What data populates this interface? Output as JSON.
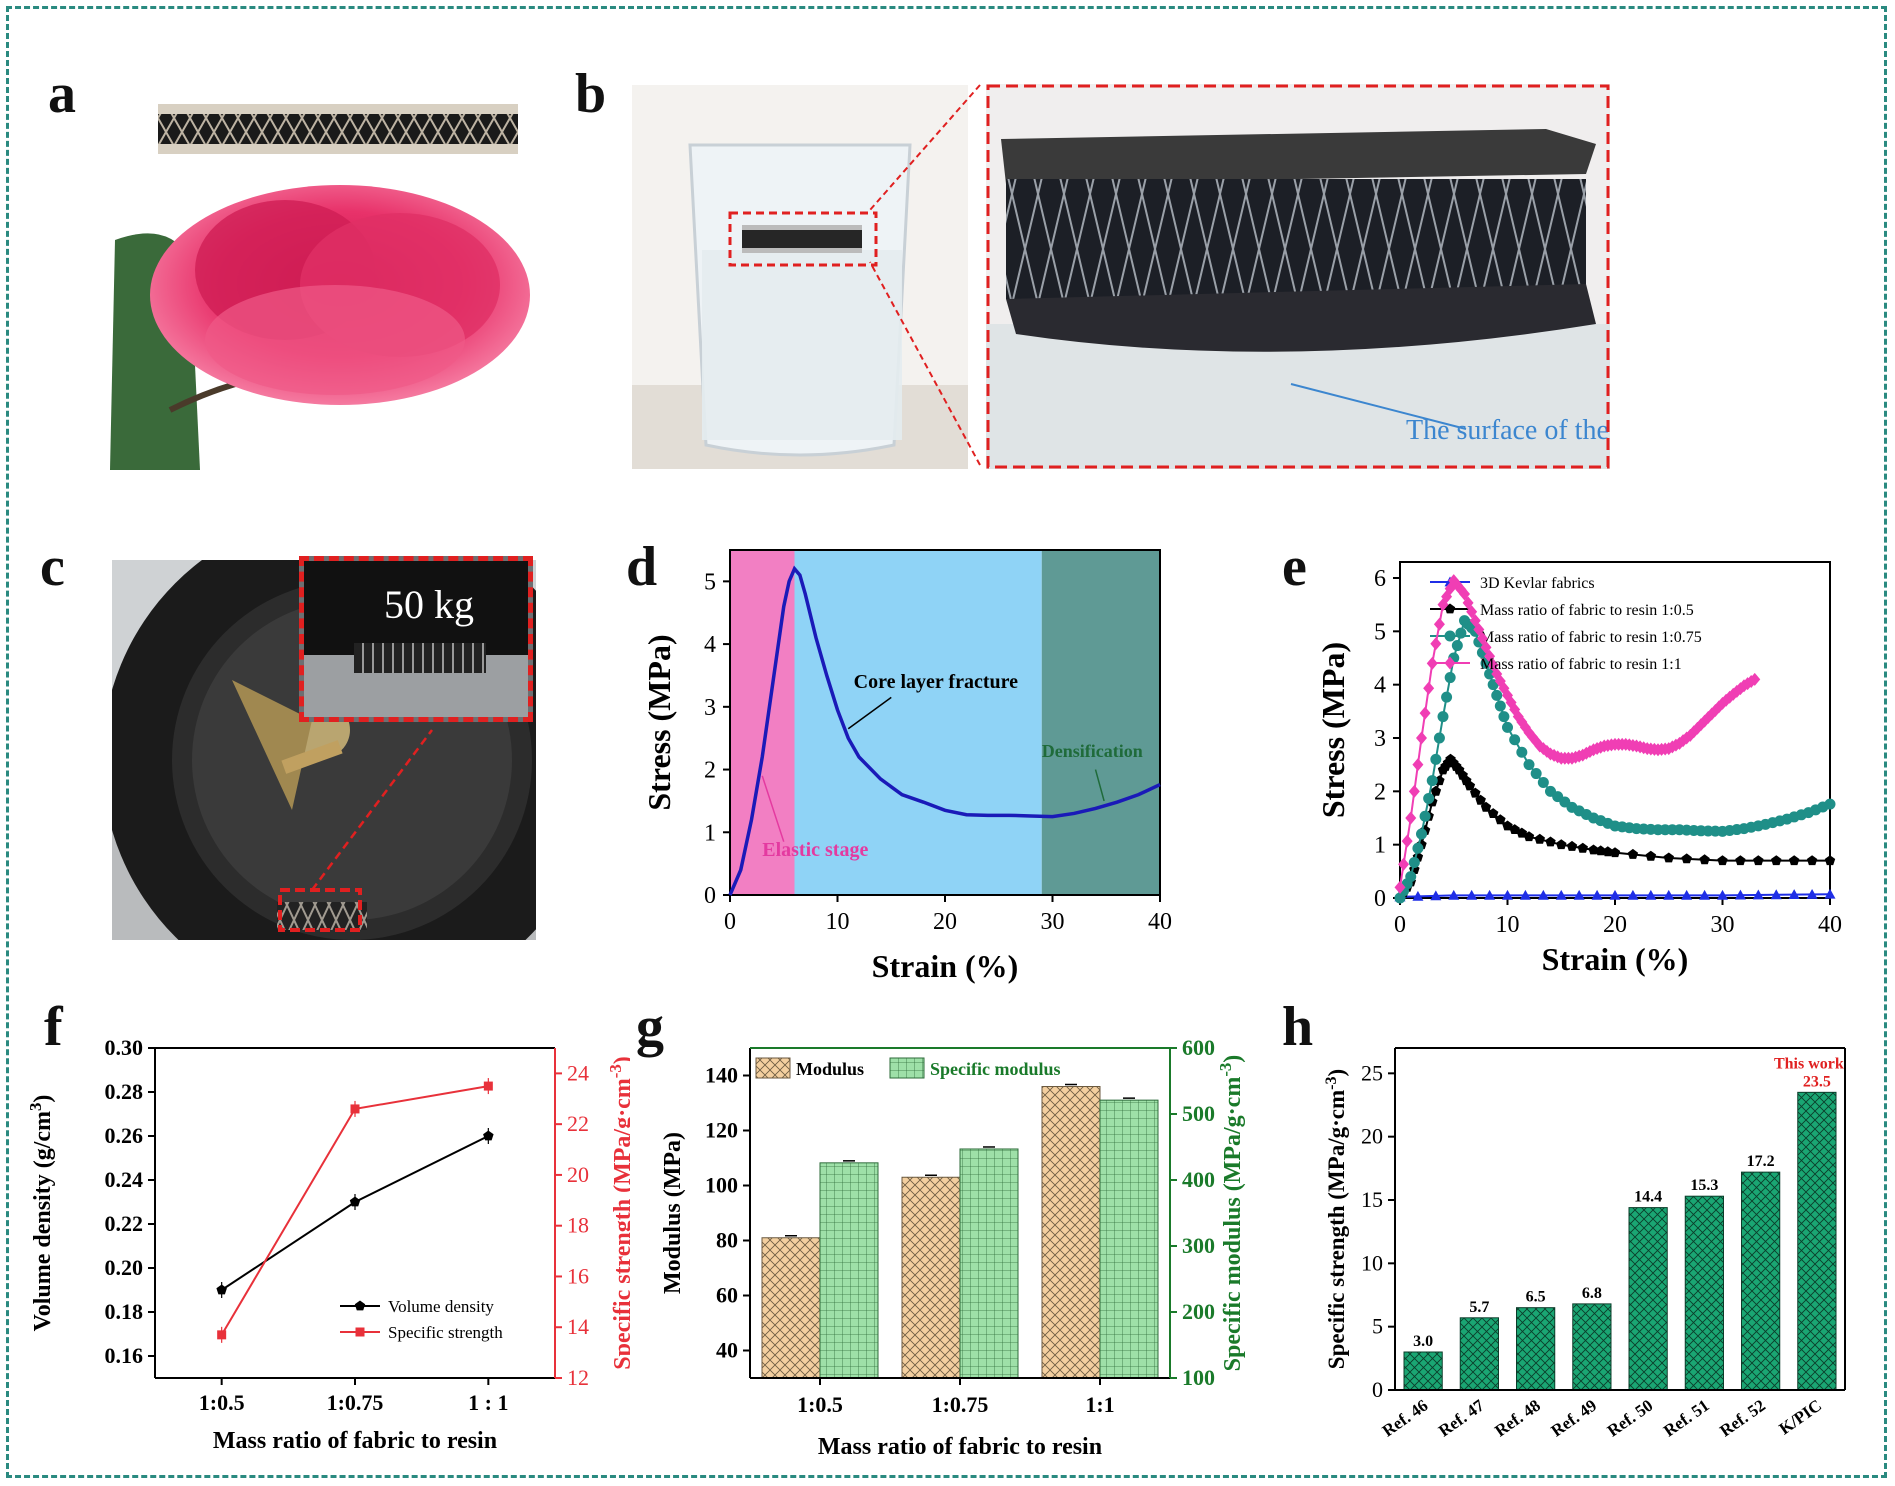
{
  "panel_labels": [
    "a",
    "b",
    "c",
    "d",
    "e",
    "f",
    "g",
    "h"
  ],
  "panel_b": {
    "caption": "The surface of the water"
  },
  "panel_c": {
    "inset_text": "50 kg"
  },
  "chart_data": [
    {
      "id": "d",
      "type": "line",
      "xlabel": "Strain (%)",
      "ylabel": "Stress (MPa)",
      "xlim": [
        0,
        40
      ],
      "ylim": [
        0,
        5.5
      ],
      "xticks": [
        0,
        10,
        20,
        30,
        40
      ],
      "yticks": [
        0,
        1,
        2,
        3,
        4,
        5
      ],
      "regions": [
        {
          "label": "Elastic stage",
          "x": [
            0,
            6
          ],
          "color": "#f27fc3"
        },
        {
          "label": "",
          "x": [
            6,
            29
          ],
          "color": "#8fd3f6"
        },
        {
          "label": "",
          "x": [
            29,
            40
          ],
          "color": "#5f9a95"
        }
      ],
      "annotations": [
        "Core layer fracture",
        "Densification",
        "Elastic stage"
      ],
      "series": [
        {
          "color": "#1a1ab8",
          "x": [
            0,
            1,
            2,
            3,
            4,
            5,
            5.5,
            6,
            6.5,
            7,
            8,
            9,
            10,
            11,
            12,
            14,
            16,
            18,
            20,
            22,
            24,
            26,
            28,
            30,
            32,
            34,
            36,
            38,
            40
          ],
          "y": [
            0,
            0.4,
            1.2,
            2.2,
            3.4,
            4.6,
            5.0,
            5.2,
            5.1,
            4.8,
            4.1,
            3.5,
            2.95,
            2.5,
            2.2,
            1.85,
            1.6,
            1.48,
            1.35,
            1.28,
            1.27,
            1.27,
            1.26,
            1.25,
            1.3,
            1.38,
            1.48,
            1.6,
            1.76
          ]
        }
      ]
    },
    {
      "id": "e",
      "type": "line",
      "xlabel": "Strain (%)",
      "ylabel": "Stress (MPa)",
      "xlim": [
        0,
        40
      ],
      "ylim": [
        0,
        6.3
      ],
      "xticks": [
        0,
        10,
        20,
        30,
        40
      ],
      "yticks": [
        0,
        1,
        2,
        3,
        4,
        5,
        6
      ],
      "legend": "top-left",
      "series": [
        {
          "name": "3D Kevlar fabrics",
          "color": "#1f2ee6",
          "marker": "triangle",
          "x": [
            0,
            5,
            10,
            15,
            20,
            25,
            30,
            35,
            40
          ],
          "y": [
            0.02,
            0.05,
            0.05,
            0.05,
            0.05,
            0.05,
            0.05,
            0.06,
            0.07
          ]
        },
        {
          "name": "Mass ratio of fabric to resin 1:0.5",
          "color": "#000000",
          "marker": "pentagon",
          "x": [
            0,
            1,
            2,
            3,
            4,
            4.7,
            5.5,
            6.5,
            8,
            10,
            12,
            15,
            18,
            20,
            25,
            30,
            35,
            40
          ],
          "y": [
            0,
            0.3,
            1.0,
            1.8,
            2.4,
            2.6,
            2.4,
            2.1,
            1.7,
            1.35,
            1.15,
            1.0,
            0.9,
            0.85,
            0.75,
            0.7,
            0.7,
            0.7
          ]
        },
        {
          "name": "Mass ratio of fabric to resin 1:0.75",
          "color": "#1f8f88",
          "marker": "circle",
          "x": [
            0,
            1,
            2,
            3,
            4,
            5,
            6,
            7,
            8,
            9,
            10,
            12,
            14,
            16,
            18,
            20,
            22,
            24,
            26,
            28,
            30,
            32,
            34,
            36,
            38,
            40
          ],
          "y": [
            0,
            0.4,
            1.2,
            2.2,
            3.4,
            4.5,
            5.2,
            5.0,
            4.4,
            3.8,
            3.2,
            2.5,
            2.0,
            1.7,
            1.5,
            1.35,
            1.3,
            1.28,
            1.28,
            1.26,
            1.25,
            1.3,
            1.38,
            1.48,
            1.6,
            1.76
          ]
        },
        {
          "name": "Mass ratio of fabric to resin 1:1",
          "color": "#f03eb4",
          "marker": "diamond",
          "x": [
            0,
            1,
            2,
            3,
            4,
            5,
            6,
            7,
            8,
            9,
            10,
            11,
            12,
            13,
            14,
            15,
            16,
            17,
            18,
            19,
            20,
            21,
            22,
            23,
            24,
            25,
            26,
            27,
            28,
            29,
            30,
            31,
            32,
            33
          ],
          "y": [
            0.2,
            1.5,
            3.0,
            4.4,
            5.5,
            5.95,
            5.7,
            5.2,
            4.7,
            4.2,
            3.8,
            3.4,
            3.1,
            2.85,
            2.7,
            2.62,
            2.62,
            2.68,
            2.78,
            2.85,
            2.88,
            2.88,
            2.85,
            2.8,
            2.78,
            2.8,
            2.9,
            3.05,
            3.25,
            3.45,
            3.65,
            3.82,
            3.98,
            4.1
          ]
        }
      ]
    },
    {
      "id": "f",
      "type": "line",
      "xlabel": "Mass ratio of fabric to resin",
      "ylabel": "Volume density (g/cm3)",
      "ylabel_right": "Specific strength (MPa/g·cm-3)",
      "categories": [
        "1:0.5",
        "1:0.75",
        "1 : 1"
      ],
      "ylim": [
        0.15,
        0.3
      ],
      "ylim_right": [
        12,
        25
      ],
      "yticks": [
        0.16,
        0.18,
        0.2,
        0.22,
        0.24,
        0.26,
        0.28,
        0.3
      ],
      "yticks_right": [
        12,
        14,
        16,
        18,
        20,
        22,
        24
      ],
      "legend": "bottom-right",
      "series": [
        {
          "name": "Volume density",
          "axis": "left",
          "color": "#000000",
          "values": [
            0.19,
            0.23,
            0.26
          ]
        },
        {
          "name": "Specific strength",
          "axis": "right",
          "color": "#e8313a",
          "values": [
            13.7,
            22.6,
            23.5
          ]
        }
      ]
    },
    {
      "id": "g",
      "type": "bar",
      "xlabel": "Mass ratio of fabric to resin",
      "ylabel": "Modulus (MPa)",
      "ylabel_right": "Specific modulus (MPa/g·cm-3)",
      "categories": [
        "1:0.5",
        "1:0.75",
        "1:1"
      ],
      "ylim": [
        30,
        150
      ],
      "ylim_right": [
        100,
        600
      ],
      "yticks": [
        40,
        60,
        80,
        100,
        120,
        140
      ],
      "yticks_right": [
        100,
        200,
        300,
        400,
        500,
        600
      ],
      "legend": "top-left",
      "series": [
        {
          "name": "Modulus",
          "axis": "left",
          "color": "#f3cf9f",
          "values": [
            81,
            103,
            136
          ]
        },
        {
          "name": "Specific modulus",
          "axis": "right",
          "color": "#9ee0a8",
          "values": [
            426,
            447,
            521
          ]
        }
      ]
    },
    {
      "id": "h",
      "type": "bar",
      "ylabel": "Specific strength (MPa/g·cm-3)",
      "categories": [
        "Ref. 46",
        "Ref. 47",
        "Ref. 48",
        "Ref. 49",
        "Ref. 50",
        "Ref. 51",
        "Ref. 52",
        "K/PIC"
      ],
      "values": [
        3.0,
        5.7,
        6.5,
        6.8,
        14.4,
        15.3,
        17.2,
        23.5
      ],
      "labels": [
        "3.0",
        "5.7",
        "6.5",
        "6.8",
        "14.4",
        "15.3",
        "17.2",
        "23.5"
      ],
      "ylim": [
        0,
        27
      ],
      "yticks": [
        0,
        5,
        10,
        15,
        20,
        25
      ],
      "annotation": "This work",
      "color": "#1aa673"
    }
  ]
}
